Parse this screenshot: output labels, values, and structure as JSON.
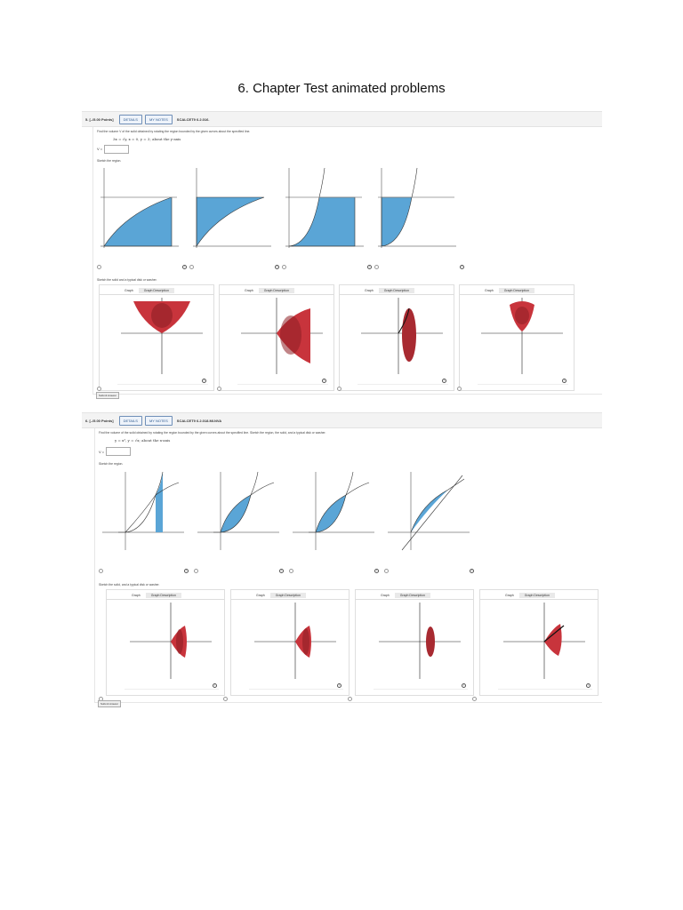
{
  "page": {
    "title": "6. Chapter Test animated problems"
  },
  "problems": [
    {
      "number_points": "5. [–/5.00 Points]",
      "details_label": "DETAILS",
      "notes_label": "MY NOTES",
      "code": "SCALCET9 6.2.016.",
      "instruction": "Find the volume V of the solid obtained by rotating the region bounded by the given curves about the specified line.",
      "equation": "3x = √y,   x = 0,   y = 3;   about the y-axis",
      "answer_label": "V =",
      "answer_value": "",
      "sketch_region_label": "Sketch the region.",
      "sketch_solid_label": "Sketch the solid and a typical disk or washer.",
      "tab_graph": "Graph",
      "tab_desc": "Graph Description",
      "submit_label": "Submit Answer"
    },
    {
      "number_points": "6. [–/5.00 Points]",
      "details_label": "DETAILS",
      "notes_label": "MY NOTES",
      "code": "SCALCET9 6.2.018.MI.NVA",
      "instruction": "Find the volume of the solid obtained by rotating the region bounded by the given curves about the specified line. Sketch the region, the solid, and a typical disk or washer.",
      "equation": "y = x³,   y = √x;   about the x-axis",
      "answer_label": "V =",
      "answer_value": "",
      "sketch_region_label": "Sketch the region.",
      "sketch_solid_label": "Sketch the solid, and a typical disk or washer.",
      "tab_graph": "Graph",
      "tab_desc": "Graph Description",
      "submit_label": "Submit Answer"
    }
  ],
  "colors": {
    "region_fill": "#5aa5d6",
    "solid_fill": "#c8343c",
    "solid_dark": "#8e1f25"
  }
}
